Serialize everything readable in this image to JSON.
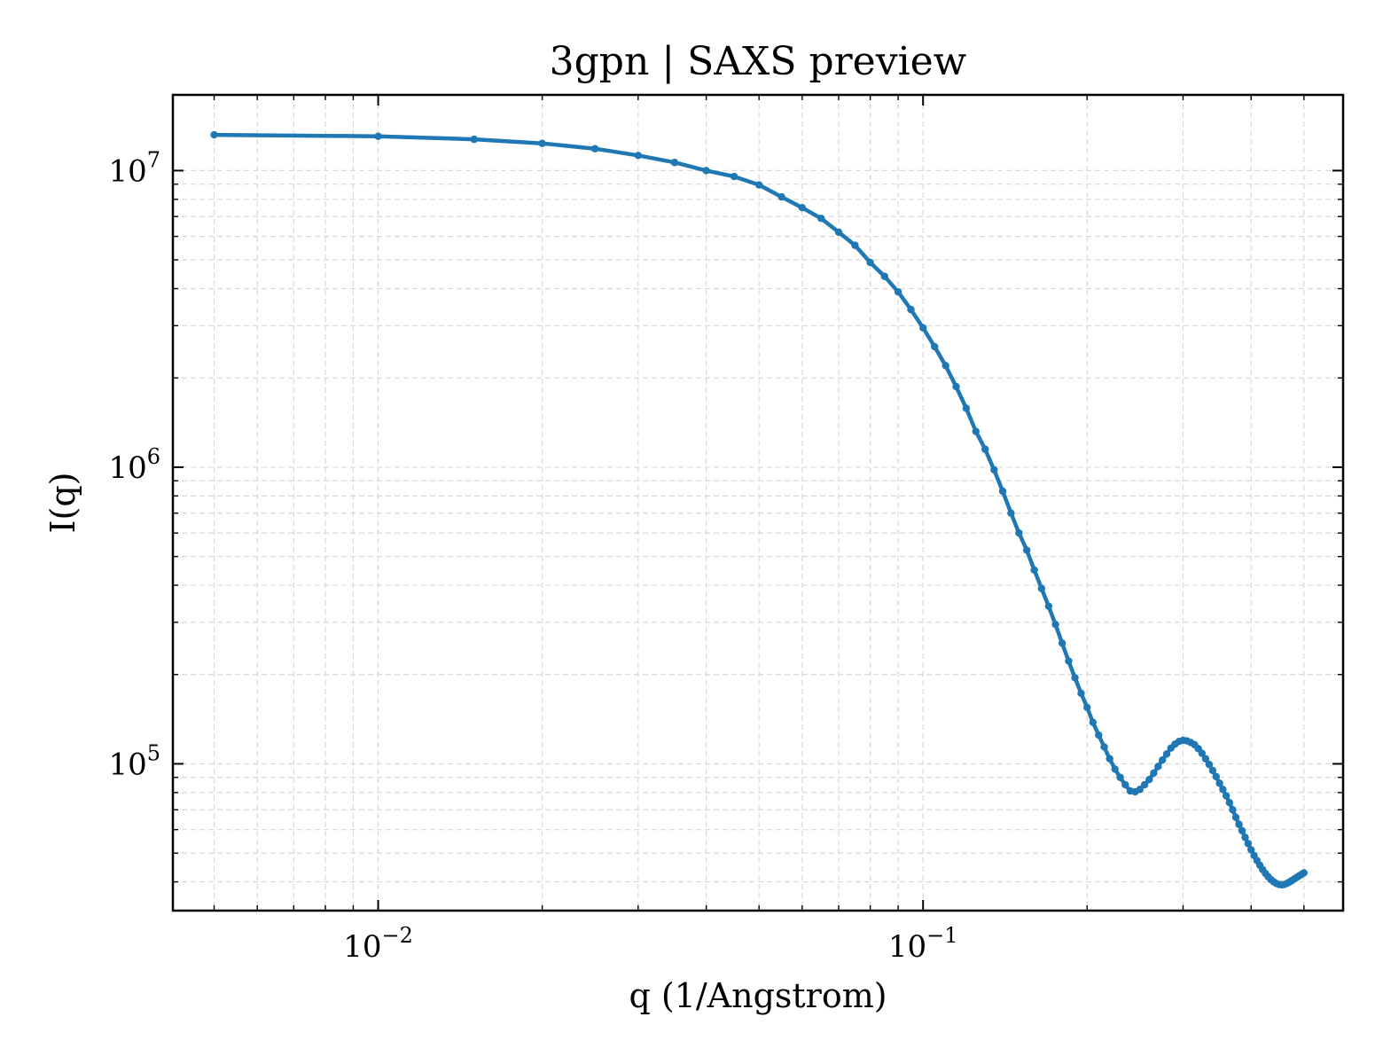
{
  "chart_data": {
    "type": "line",
    "title": "3gpn | SAXS preview",
    "xlabel": "q (1/Angstrom)",
    "ylabel": "I(q)",
    "xscale": "log",
    "yscale": "log",
    "xlim": [
      0.0042,
      0.59
    ],
    "ylim": [
      32000,
      18000000
    ],
    "grid": true,
    "x_ticks": [
      {
        "value": 0.01,
        "base": "10",
        "exp": "−2"
      },
      {
        "value": 0.1,
        "base": "10",
        "exp": "−1"
      }
    ],
    "y_ticks": [
      {
        "value": 100000,
        "base": "10",
        "exp": "5"
      },
      {
        "value": 1000000,
        "base": "10",
        "exp": "6"
      },
      {
        "value": 10000000,
        "base": "10",
        "exp": "7"
      }
    ],
    "series": [
      {
        "color": "#1f77b4",
        "marker": "dot",
        "x": [
          0.005,
          0.01,
          0.015,
          0.02,
          0.025,
          0.03,
          0.035,
          0.04,
          0.045,
          0.05,
          0.055,
          0.06,
          0.065,
          0.07,
          0.075,
          0.08,
          0.085,
          0.09,
          0.095,
          0.1,
          0.105,
          0.11,
          0.115,
          0.12,
          0.125,
          0.13,
          0.135,
          0.14,
          0.145,
          0.15,
          0.155,
          0.16,
          0.165,
          0.17,
          0.175,
          0.18,
          0.185,
          0.19,
          0.195,
          0.2,
          0.205,
          0.21,
          0.215,
          0.22,
          0.225,
          0.23,
          0.235,
          0.24,
          0.245,
          0.25,
          0.255,
          0.26,
          0.265,
          0.27,
          0.275,
          0.28,
          0.285,
          0.29,
          0.295,
          0.3,
          0.305,
          0.31,
          0.315,
          0.32,
          0.325,
          0.33,
          0.335,
          0.34,
          0.345,
          0.35,
          0.355,
          0.36,
          0.365,
          0.37,
          0.375,
          0.38,
          0.385,
          0.39,
          0.395,
          0.4,
          0.405,
          0.41,
          0.415,
          0.42,
          0.425,
          0.43,
          0.435,
          0.44,
          0.445,
          0.45,
          0.455,
          0.46,
          0.465,
          0.47,
          0.475,
          0.48,
          0.485,
          0.49,
          0.495,
          0.5
        ],
        "y": [
          13200000,
          13050000,
          12750000,
          12350000,
          11850000,
          11250000,
          10650000,
          10000000,
          9550000,
          8950000,
          8150000,
          7500000,
          6900000,
          6200000,
          5600000,
          4900000,
          4400000,
          3900000,
          3400000,
          2950000,
          2550000,
          2200000,
          1870000,
          1580000,
          1320000,
          1150000,
          980000,
          830000,
          700000,
          600000,
          525000,
          450000,
          390000,
          340000,
          295000,
          255000,
          222000,
          195000,
          173000,
          155000,
          138000,
          125000,
          114000,
          104000,
          96000,
          90000,
          85000,
          81000,
          80500,
          82000,
          85000,
          88500,
          93000,
          98000,
          103000,
          108000,
          113000,
          116500,
          119000,
          120000,
          119500,
          118000,
          116000,
          112500,
          108500,
          104000,
          99500,
          95000,
          90500,
          86000,
          82000,
          78000,
          74000,
          70000,
          66000,
          62500,
          59500,
          56500,
          53800,
          51300,
          49100,
          47200,
          45500,
          44000,
          42700,
          41600,
          40700,
          40000,
          39500,
          39200,
          39100,
          39200,
          39500,
          39900,
          40400,
          40900,
          41400,
          41900,
          42400,
          42900
        ]
      }
    ]
  }
}
